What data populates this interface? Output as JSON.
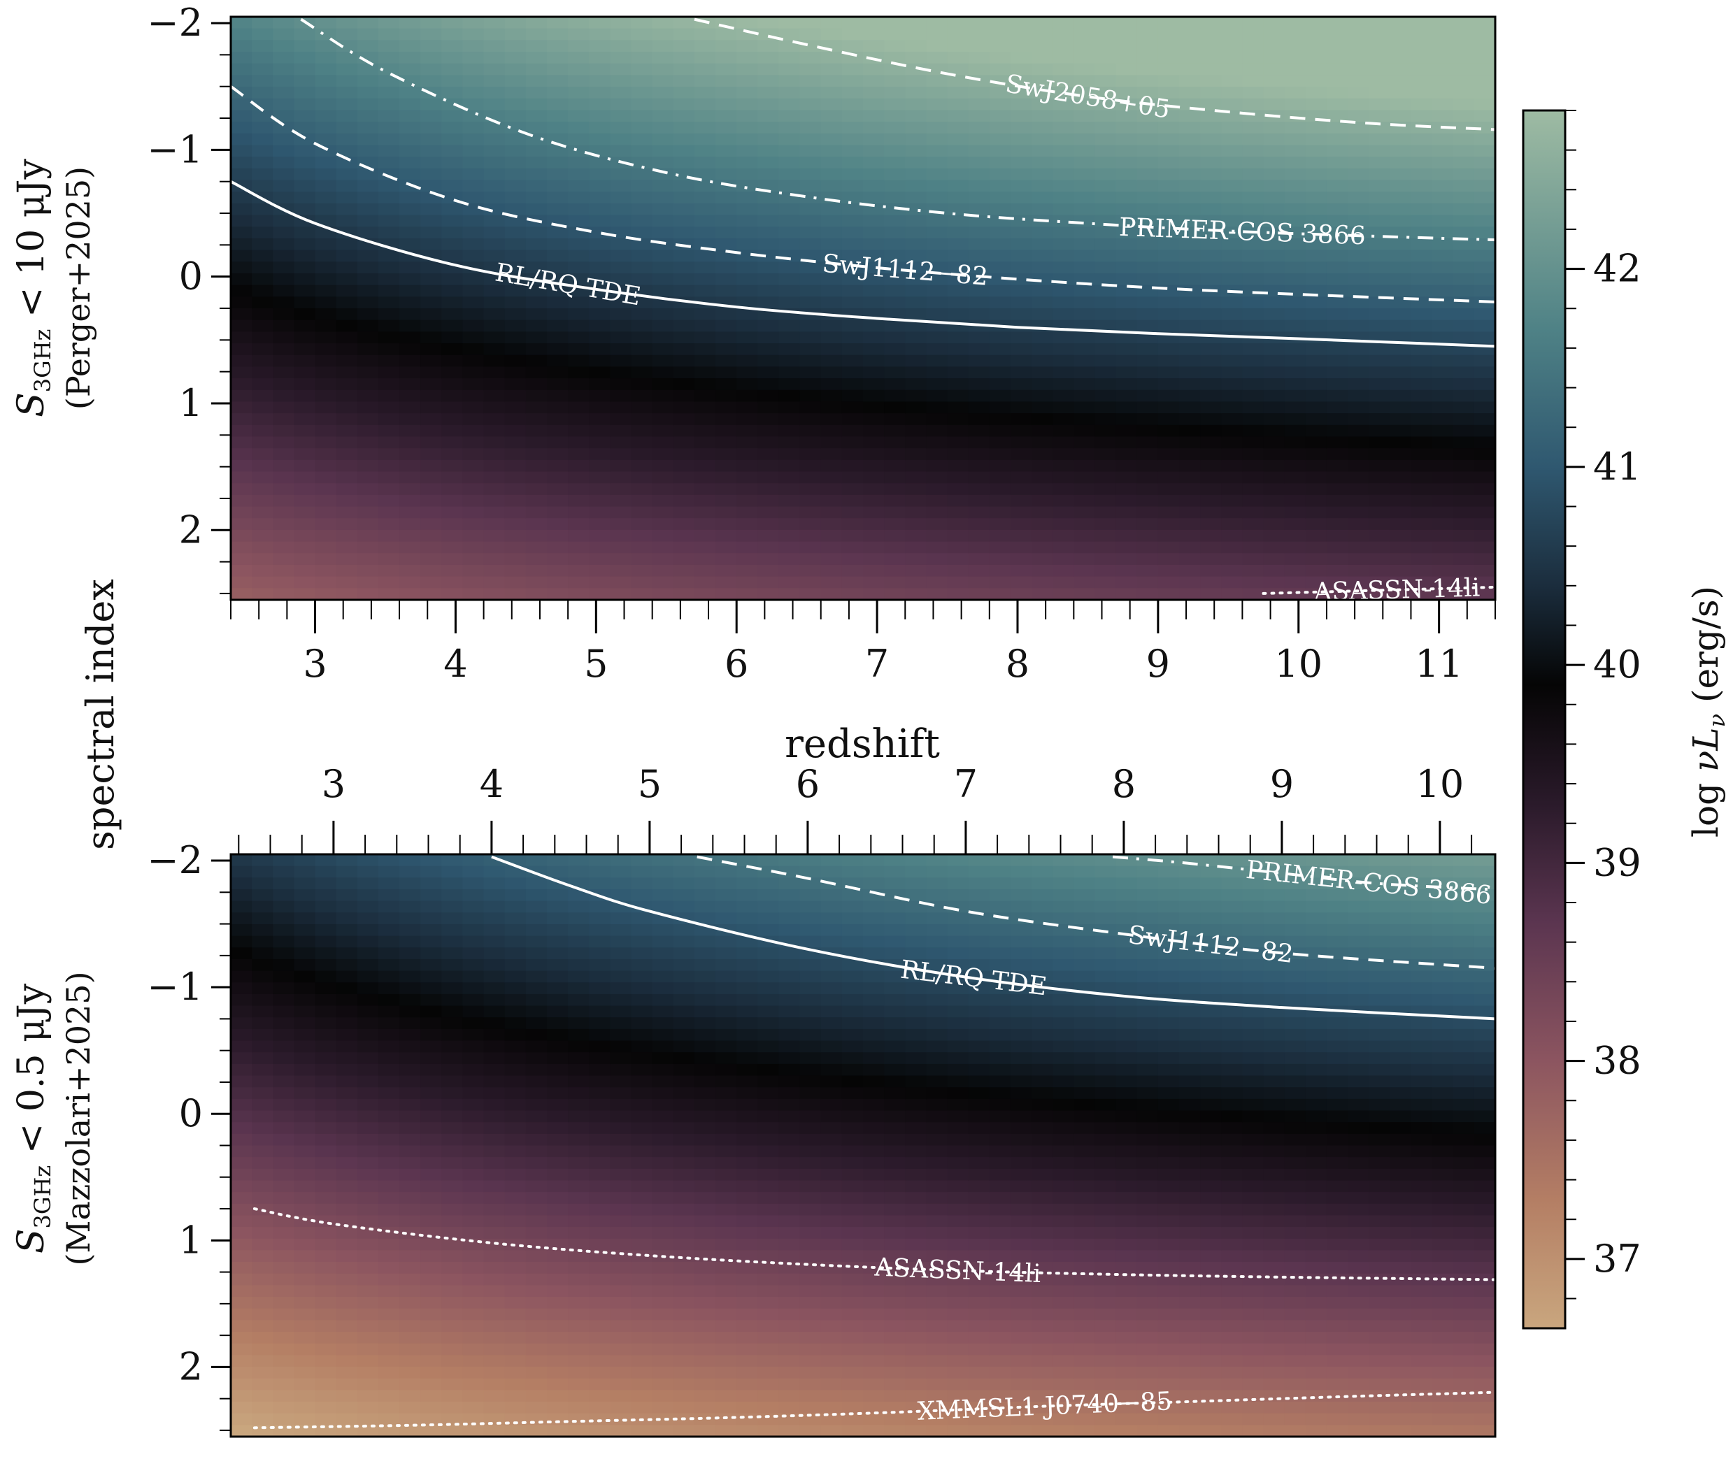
{
  "figure": {
    "shared_ylabel": "spectral index",
    "colorbar": {
      "label_prefix": "log ",
      "label_nu": "ν",
      "label_L": "L",
      "label_sub": "ν",
      "label_suffix": " (erg/s)",
      "range": [
        36.65,
        42.8
      ],
      "ticks": [
        37,
        38,
        39,
        40,
        41,
        42
      ],
      "colormap_stops": [
        {
          "v": 36.65,
          "color": "#c9a67e"
        },
        {
          "v": 37.3,
          "color": "#b47e64"
        },
        {
          "v": 38.0,
          "color": "#8c5560"
        },
        {
          "v": 38.7,
          "color": "#5b3550"
        },
        {
          "v": 39.3,
          "color": "#2a1a2a"
        },
        {
          "v": 39.9,
          "color": "#050505"
        },
        {
          "v": 40.4,
          "color": "#1b2d3d"
        },
        {
          "v": 41.0,
          "color": "#2f5870"
        },
        {
          "v": 41.7,
          "color": "#4f8286"
        },
        {
          "v": 42.8,
          "color": "#9ebba3"
        }
      ]
    }
  },
  "chart_data": [
    {
      "type": "heatmap",
      "panel": "top",
      "ylabel_sym": "S",
      "ylabel_sub": "3GHz",
      "ylabel_rest": " < 10 μJy",
      "ylabel_line2": "(Perger+2025)",
      "xlabel": "redshift",
      "xlim": [
        2.4,
        11.4
      ],
      "ylim": [
        -2.05,
        2.55
      ],
      "y_inverted": true,
      "xticks": [
        3,
        4,
        5,
        6,
        7,
        8,
        9,
        10,
        11
      ],
      "yticks": [
        -2,
        -1,
        0,
        1,
        2
      ],
      "ytick_labels": [
        "−2",
        "−1",
        "0",
        "1",
        "2"
      ],
      "value_model": {
        "intercept_at_alpha0": 40.78,
        "slope_per_unit_alpha": -0.98,
        "redshift_gain": 2.0
      },
      "contours": [
        {
          "name": "SwJ2058+05",
          "style": "dashed",
          "x": [
            5.7,
            6.5,
            7.5,
            8.5,
            9.5,
            10.5,
            11.4
          ],
          "y": [
            -2.03,
            -1.83,
            -1.6,
            -1.42,
            -1.3,
            -1.21,
            -1.16
          ],
          "label_x": 8.5
        },
        {
          "name": "PRIMER-COS 3866",
          "style": "dashdot",
          "x": [
            2.9,
            3.5,
            4.5,
            5.5,
            6.5,
            7.5,
            8.5,
            9.5,
            10.5,
            11.4
          ],
          "y": [
            -2.03,
            -1.62,
            -1.13,
            -0.82,
            -0.63,
            -0.5,
            -0.42,
            -0.36,
            -0.32,
            -0.29
          ],
          "label_x": 9.6
        },
        {
          "name": "SwJ1112−82",
          "style": "dashed",
          "x": [
            2.4,
            3.0,
            4.0,
            5.0,
            6.0,
            7.0,
            8.0,
            9.0,
            10.0,
            11.4
          ],
          "y": [
            -1.5,
            -1.05,
            -0.6,
            -0.35,
            -0.19,
            -0.07,
            0.02,
            0.09,
            0.14,
            0.2
          ],
          "label_x": 7.2
        },
        {
          "name": "RL/RQ TDE",
          "style": "solid",
          "x": [
            2.4,
            3.0,
            4.0,
            5.0,
            6.0,
            7.0,
            8.0,
            9.0,
            10.0,
            11.4
          ],
          "y": [
            -0.75,
            -0.42,
            -0.09,
            0.1,
            0.24,
            0.33,
            0.4,
            0.45,
            0.49,
            0.55
          ],
          "label_x": 4.8
        },
        {
          "name": "ASASSN-14li",
          "style": "dotted",
          "x": [
            9.75,
            11.4
          ],
          "y": [
            2.5,
            2.45
          ],
          "label_x": 10.7
        }
      ]
    },
    {
      "type": "heatmap",
      "panel": "bottom",
      "ylabel_sym": "S",
      "ylabel_sub": "3GHz",
      "ylabel_rest": " < 0.5 μJy",
      "ylabel_line2": "(Mazzolari+2025)",
      "xlabel": "",
      "xlim": [
        2.35,
        10.35
      ],
      "ylim": [
        -2.05,
        2.55
      ],
      "y_inverted": true,
      "xticks": [
        3,
        4,
        5,
        6,
        7,
        8,
        9,
        10
      ],
      "yticks": [
        -2,
        -1,
        0,
        1,
        2
      ],
      "ytick_labels": [
        "−2",
        "−1",
        "0",
        "1",
        "2"
      ],
      "value_model": {
        "intercept_at_alpha0": 39.6,
        "slope_per_unit_alpha": -0.98,
        "redshift_gain": 2.0
      },
      "contours": [
        {
          "name": "PRIMER-COS 3866",
          "style": "dashdot",
          "x": [
            7.93,
            8.4,
            9.0,
            9.6,
            10.35
          ],
          "y": [
            -2.03,
            -1.98,
            -1.9,
            -1.82,
            -1.77
          ],
          "label_x": 9.55
        },
        {
          "name": "SwJ1112−82",
          "style": "dashed",
          "x": [
            5.3,
            6.0,
            7.0,
            8.0,
            9.0,
            10.35
          ],
          "y": [
            -2.03,
            -1.86,
            -1.6,
            -1.42,
            -1.27,
            -1.15
          ],
          "label_x": 8.55
        },
        {
          "name": "RL/RQ TDE",
          "style": "solid",
          "x": [
            4.0,
            4.5,
            5.0,
            6.0,
            7.0,
            8.0,
            9.0,
            10.35
          ],
          "y": [
            -2.03,
            -1.8,
            -1.6,
            -1.3,
            -1.08,
            -0.93,
            -0.84,
            -0.75
          ],
          "label_x": 7.05
        },
        {
          "name": "ASASSN-14li",
          "style": "dotted",
          "x": [
            2.5,
            3.0,
            4.0,
            5.0,
            6.0,
            7.0,
            8.0,
            9.0,
            10.35
          ],
          "y": [
            0.75,
            0.87,
            1.02,
            1.12,
            1.19,
            1.24,
            1.27,
            1.29,
            1.31
          ],
          "label_x": 6.95
        },
        {
          "name": "XMMSL1 J0740−85",
          "style": "dotted",
          "x": [
            2.5,
            3.5,
            4.5,
            5.5,
            6.5,
            7.5,
            8.5,
            9.5,
            10.35
          ],
          "y": [
            2.48,
            2.46,
            2.43,
            2.4,
            2.36,
            2.31,
            2.27,
            2.23,
            2.2
          ],
          "label_x": 7.5
        }
      ]
    }
  ]
}
